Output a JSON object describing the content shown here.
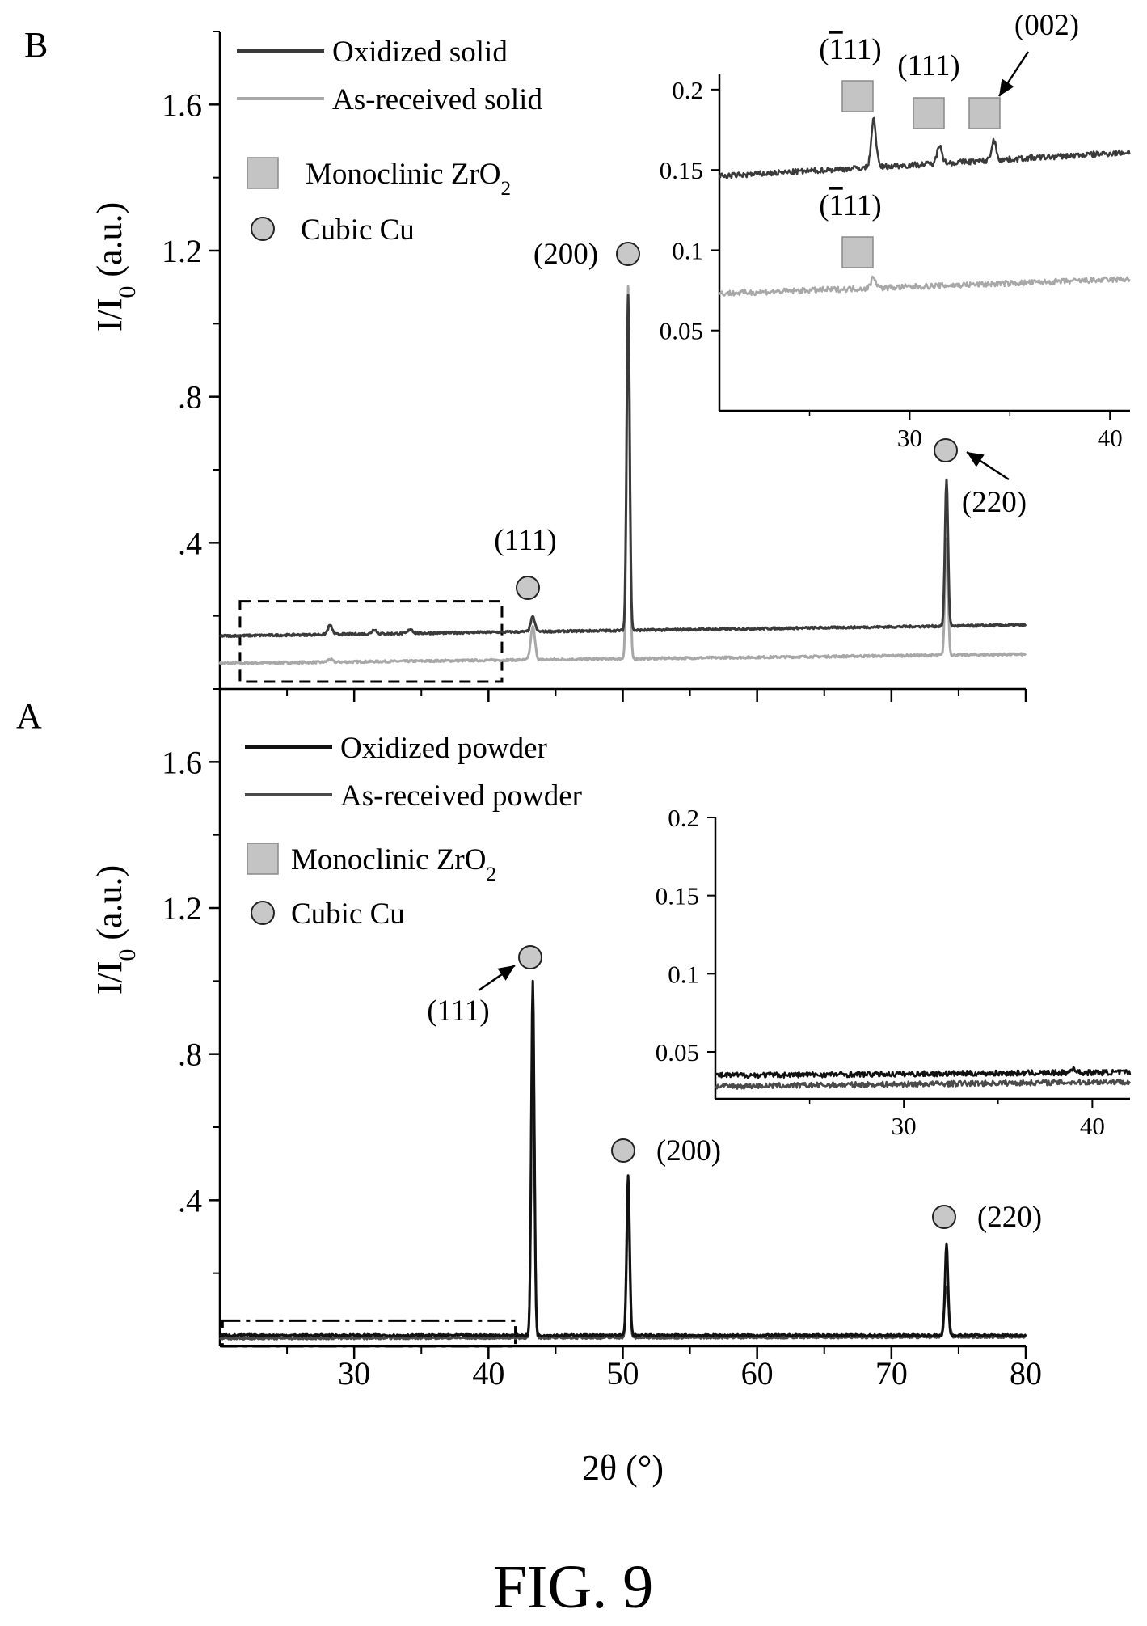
{
  "figure": {
    "caption": "FIG. 9",
    "xlabel": "2θ (°)",
    "x_ticks": [
      30,
      40,
      50,
      60,
      70,
      80
    ]
  },
  "chart_data": [
    {
      "panel": "B",
      "type": "line",
      "ylabel": "I/I0 (a.u.)",
      "xlim": [
        20,
        80
      ],
      "ylim": [
        0,
        1.8
      ],
      "y_ticks": [
        {
          "value": 0.4,
          "label": ".4"
        },
        {
          "value": 0.8,
          "label": ".8"
        },
        {
          "value": 1.2,
          "label": "1.2"
        },
        {
          "value": 1.6,
          "label": "1.6"
        }
      ],
      "legend": {
        "placement": "top-left",
        "entries": [
          "Oxidized solid",
          "As-received solid"
        ]
      },
      "marker_legend": [
        {
          "marker": "square",
          "label": "Monoclinic ZrO",
          "sub": "2"
        },
        {
          "marker": "circle",
          "label": "Cubic Cu"
        }
      ],
      "series": [
        {
          "name": "Oxidized solid",
          "color": "#3a3a3a",
          "baseline": [
            [
              20,
              0.145
            ],
            [
              80,
              0.175
            ]
          ],
          "peaks": [
            [
              28.2,
              0.025
            ],
            [
              31.5,
              0.012
            ],
            [
              34.2,
              0.012
            ],
            [
              43.3,
              0.04
            ],
            [
              50.4,
              0.92
            ],
            [
              74.1,
              0.4
            ]
          ]
        },
        {
          "name": "As-received solid",
          "color": "#a8a8a8",
          "baseline": [
            [
              20,
              0.07
            ],
            [
              80,
              0.095
            ]
          ],
          "peaks": [
            [
              28.2,
              0.008
            ],
            [
              43.3,
              0.09
            ],
            [
              50.4,
              1.02
            ],
            [
              74.1,
              0.32
            ]
          ]
        }
      ],
      "peak_annotations": [
        {
          "label": "(111)",
          "x": 43.3,
          "marker": "circle"
        },
        {
          "label": "(200)",
          "x": 50.4,
          "marker": "circle"
        },
        {
          "label": "(220)",
          "x": 74.1,
          "marker": "circle"
        }
      ],
      "zoom_region": {
        "xlim": [
          21.5,
          41
        ],
        "ylim": [
          0.02,
          0.24
        ],
        "style": "dashed"
      },
      "inset": {
        "xlim": [
          20.5,
          41
        ],
        "ylim": [
          0,
          0.21
        ],
        "x_ticks": [
          30,
          40
        ],
        "y_ticks": [
          {
            "value": 0.05,
            "label": "0.05"
          },
          {
            "value": 0.1,
            "label": "0.1"
          },
          {
            "value": 0.15,
            "label": "0.15"
          },
          {
            "value": 0.2,
            "label": "0.2"
          }
        ],
        "series": [
          {
            "name": "Oxidized solid",
            "color": "#3a3a3a",
            "baseline": [
              [
                20.5,
                0.146
              ],
              [
                41,
                0.161
              ]
            ],
            "peaks": [
              [
                28.2,
                0.03
              ],
              [
                31.5,
                0.012
              ],
              [
                34.2,
                0.012
              ]
            ]
          },
          {
            "name": "As-received solid",
            "color": "#a8a8a8",
            "baseline": [
              [
                20.5,
                0.073
              ],
              [
                41,
                0.082
              ]
            ],
            "peaks": [
              [
                28.2,
                0.007
              ]
            ]
          }
        ],
        "annotations": [
          {
            "label": "(111)",
            "overbar": "1",
            "marker": "square",
            "series": "Oxidized solid"
          },
          {
            "label": "(111)",
            "marker": "square",
            "series": "Oxidized solid"
          },
          {
            "label": "(002)",
            "marker": "square",
            "series": "Oxidized solid"
          },
          {
            "label": "(111)",
            "overbar": "1",
            "marker": "square",
            "series": "As-received solid"
          }
        ]
      }
    },
    {
      "panel": "A",
      "type": "line",
      "ylabel": "I/I0 (a.u.)",
      "xlim": [
        20,
        80
      ],
      "ylim": [
        0,
        1.8
      ],
      "y_ticks": [
        {
          "value": 0.4,
          "label": ".4"
        },
        {
          "value": 0.8,
          "label": ".8"
        },
        {
          "value": 1.2,
          "label": "1.2"
        },
        {
          "value": 1.6,
          "label": "1.6"
        }
      ],
      "legend": {
        "placement": "top-left",
        "entries": [
          "Oxidized powder",
          "As-received powder"
        ]
      },
      "marker_legend": [
        {
          "marker": "square",
          "label": "Monoclinic ZrO",
          "sub": "2"
        },
        {
          "marker": "circle",
          "label": "Cubic Cu"
        }
      ],
      "series": [
        {
          "name": "Oxidized powder",
          "color": "#111111",
          "baseline": [
            [
              20,
              0.03
            ],
            [
              80,
              0.03
            ]
          ],
          "peaks": [
            [
              43.3,
              0.97
            ],
            [
              50.4,
              0.44
            ],
            [
              74.1,
              0.25
            ]
          ]
        },
        {
          "name": "As-received powder",
          "color": "#4a4a4a",
          "baseline": [
            [
              20,
              0.022
            ],
            [
              80,
              0.026
            ]
          ],
          "peaks": [
            [
              43.3,
              0.9
            ],
            [
              50.4,
              0.38
            ],
            [
              74.1,
              0.14
            ]
          ]
        }
      ],
      "peak_annotations": [
        {
          "label": "(111)",
          "x": 43.3,
          "marker": "circle"
        },
        {
          "label": "(200)",
          "x": 50.4,
          "marker": "circle"
        },
        {
          "label": "(220)",
          "x": 74.1,
          "marker": "circle"
        }
      ],
      "zoom_region": {
        "xlim": [
          20.2,
          42
        ],
        "ylim": [
          0,
          0.07
        ],
        "style": "dash-dot"
      },
      "inset": {
        "xlim": [
          20,
          42
        ],
        "ylim": [
          0.02,
          0.2
        ],
        "x_ticks": [
          30,
          40
        ],
        "y_ticks": [
          {
            "value": 0.05,
            "label": "0.05"
          },
          {
            "value": 0.1,
            "label": "0.1"
          },
          {
            "value": 0.15,
            "label": "0.15"
          },
          {
            "value": 0.2,
            "label": "0.2"
          }
        ],
        "series": [
          {
            "name": "Oxidized powder",
            "color": "#111111",
            "baseline": [
              [
                20,
                0.035
              ],
              [
                42,
                0.037
              ]
            ],
            "peaks": [
              [
                39,
                0.003
              ]
            ]
          },
          {
            "name": "As-received powder",
            "color": "#4a4a4a",
            "baseline": [
              [
                20,
                0.028
              ],
              [
                42,
                0.031
              ]
            ],
            "peaks": []
          }
        ]
      }
    }
  ]
}
